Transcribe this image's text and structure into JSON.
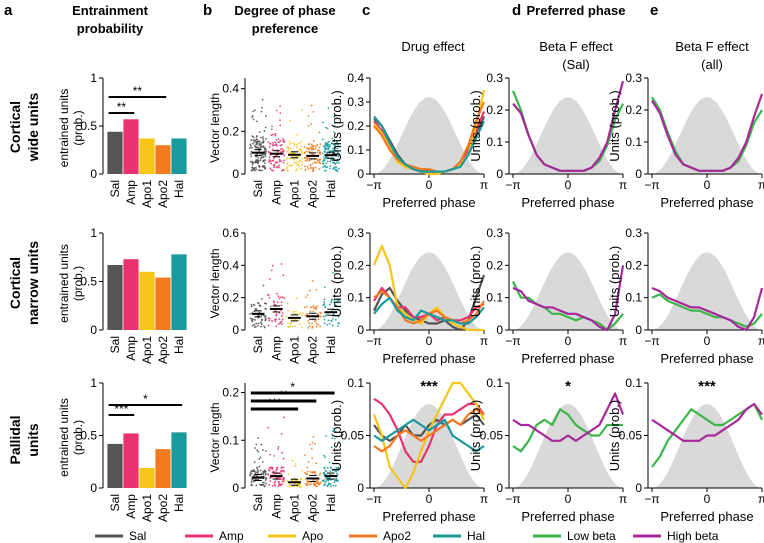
{
  "panels": {
    "a": {
      "letter": "a",
      "title": [
        "Entrainment",
        "probability"
      ]
    },
    "b": {
      "letter": "b",
      "title": [
        "Degree of phase",
        "preference"
      ]
    },
    "c": {
      "letter": "c",
      "title": [
        "Drug effect"
      ]
    },
    "d": {
      "letter": "d",
      "header": "Preferred phase",
      "title": [
        "Beta F effect",
        "(Sal)"
      ]
    },
    "e": {
      "letter": "e",
      "title": [
        "Beta F effect",
        "(all)"
      ]
    }
  },
  "rows": [
    {
      "label": [
        "Cortical",
        "wide units"
      ]
    },
    {
      "label": [
        "Cortical",
        "narrow units"
      ]
    },
    {
      "label": [
        "Pallidal",
        "units"
      ]
    }
  ],
  "colors": {
    "Sal": "#555555",
    "Amp": "#e8336e",
    "Apo1": "#f5c518",
    "Apo2": "#f47a20",
    "Hal": "#1a9a9c",
    "Low": "#3cb54a",
    "High": "#a8279b",
    "bg": "#d9d9d9"
  },
  "legend": [
    {
      "label": "Sal",
      "key": "Sal"
    },
    {
      "label": "Amp",
      "key": "Amp"
    },
    {
      "label": "Apo",
      "key": "Apo1"
    },
    {
      "label": "Apo2",
      "key": "Apo2"
    },
    {
      "label": "Hal",
      "key": "Hal"
    },
    {
      "label": "Low beta",
      "key": "Low"
    },
    {
      "label": "High beta",
      "key": "High"
    }
  ],
  "chart_data": [
    {
      "id": "a1",
      "type": "bar",
      "categories": [
        "Sal",
        "Amp",
        "Apo1",
        "Apo2",
        "Hal"
      ],
      "values": [
        0.44,
        0.57,
        0.37,
        0.3,
        0.37
      ],
      "ylim": [
        0,
        1
      ],
      "yticks": [
        0,
        0.5,
        1
      ],
      "ylabel": [
        "entrained units",
        "(prob.)"
      ],
      "sig": [
        {
          "from": 0,
          "to": 1,
          "label": "**"
        },
        {
          "from": 0,
          "to": 3,
          "label": "**"
        }
      ]
    },
    {
      "id": "a2",
      "type": "bar",
      "categories": [
        "Sal",
        "Amp",
        "Apo1",
        "Apo2",
        "Hal"
      ],
      "values": [
        0.67,
        0.73,
        0.6,
        0.54,
        0.78
      ],
      "ylim": [
        0,
        1
      ],
      "yticks": [
        0,
        0.5,
        1
      ],
      "ylabel": [
        "entrained units",
        "(prob.)"
      ],
      "sig": []
    },
    {
      "id": "a3",
      "type": "bar",
      "categories": [
        "Sal",
        "Amp",
        "Apo1",
        "Apo2",
        "Hal"
      ],
      "values": [
        0.42,
        0.52,
        0.19,
        0.37,
        0.53
      ],
      "ylim": [
        0,
        1
      ],
      "yticks": [
        0,
        0.5,
        1
      ],
      "ylabel": [
        "entrained units",
        "(prob.)"
      ],
      "sig": [
        {
          "from": 0,
          "to": 1,
          "label": "***"
        },
        {
          "from": 0,
          "to": 4,
          "label": "*"
        }
      ]
    },
    {
      "id": "b1",
      "type": "scatter",
      "categories": [
        "Sal",
        "Amp",
        "Apo1",
        "Apo2",
        "Hal"
      ],
      "means": [
        0.1,
        0.095,
        0.09,
        0.085,
        0.088
      ],
      "spread": [
        0.22,
        0.2,
        0.18,
        0.2,
        0.2
      ],
      "npts": [
        150,
        90,
        70,
        90,
        120
      ],
      "ylim": [
        0,
        0.45
      ],
      "yticks": [
        0,
        0.2,
        0.4
      ],
      "ylabel": [
        "Vector length"
      ],
      "sig": []
    },
    {
      "id": "b2",
      "type": "scatter",
      "categories": [
        "Sal",
        "Amp",
        "Apo1",
        "Apo2",
        "Hal"
      ],
      "means": [
        0.1,
        0.13,
        0.075,
        0.085,
        0.11
      ],
      "spread": [
        0.22,
        0.3,
        0.12,
        0.18,
        0.25
      ],
      "npts": [
        60,
        50,
        30,
        45,
        45
      ],
      "ylim": [
        0,
        0.6
      ],
      "yticks": [
        0,
        0.2,
        0.4,
        0.6
      ],
      "ylabel": [
        "Vector length"
      ],
      "sig": []
    },
    {
      "id": "b3",
      "type": "scatter",
      "categories": [
        "Sal",
        "Amp",
        "Apo1",
        "Apo2",
        "Hal"
      ],
      "means": [
        0.022,
        0.025,
        0.012,
        0.02,
        0.025
      ],
      "spread": [
        0.08,
        0.12,
        0.05,
        0.1,
        0.1
      ],
      "npts": [
        90,
        80,
        40,
        60,
        80
      ],
      "ylim": [
        0,
        0.22
      ],
      "yticks": [
        0,
        0.1,
        0.2
      ],
      "ylabel": [
        "Vector length"
      ],
      "sig": [
        {
          "from": 0,
          "to": 4,
          "label": "*"
        },
        {
          "from": 0,
          "to": 3,
          "label": "**"
        },
        {
          "from": 0,
          "to": 2,
          "label": "***"
        }
      ]
    },
    {
      "id": "c1",
      "type": "line",
      "xlabel": "Preferred phase",
      "xticklabels": [
        "−π",
        "0",
        "π"
      ],
      "ylim": [
        0,
        0.4
      ],
      "yticks": [
        0,
        0.1,
        0.2,
        0.3,
        0.4
      ],
      "ylabel": "Units (prob.)",
      "stars": "",
      "series": [
        {
          "key": "Sal",
          "values": [
            0.23,
            0.2,
            0.14,
            0.08,
            0.04,
            0.02,
            0.02,
            0.01,
            0.01,
            0.01,
            0.02,
            0.04,
            0.08,
            0.16,
            0.24
          ]
        },
        {
          "key": "Amp",
          "values": [
            0.22,
            0.18,
            0.12,
            0.06,
            0.03,
            0.02,
            0.01,
            0.01,
            0.01,
            0.01,
            0.02,
            0.05,
            0.1,
            0.18,
            0.26
          ]
        },
        {
          "key": "Apo1",
          "values": [
            0.21,
            0.17,
            0.11,
            0.05,
            0.03,
            0.02,
            0.01,
            0.0,
            0.0,
            0.01,
            0.02,
            0.04,
            0.08,
            0.2,
            0.35
          ]
        },
        {
          "key": "Apo2",
          "values": [
            0.2,
            0.16,
            0.1,
            0.06,
            0.04,
            0.03,
            0.02,
            0.02,
            0.01,
            0.01,
            0.02,
            0.05,
            0.12,
            0.22,
            0.3
          ]
        },
        {
          "key": "Hal",
          "values": [
            0.24,
            0.2,
            0.13,
            0.07,
            0.04,
            0.02,
            0.01,
            0.01,
            0.01,
            0.01,
            0.02,
            0.03,
            0.08,
            0.15,
            0.22
          ]
        }
      ]
    },
    {
      "id": "c2",
      "type": "line",
      "xlabel": "Preferred phase",
      "xticklabels": [
        "−π",
        "0",
        "π"
      ],
      "ylim": [
        0,
        0.3
      ],
      "yticks": [
        0,
        0.1,
        0.2,
        0.3
      ],
      "ylabel": "Units (prob.)",
      "stars": "",
      "series": [
        {
          "key": "Sal",
          "values": [
            0.06,
            0.11,
            0.13,
            0.09,
            0.06,
            0.04,
            0.03,
            0.02,
            0.02,
            0.03,
            0.01,
            0.0,
            0.03,
            0.1,
            0.17
          ]
        },
        {
          "key": "Amp",
          "values": [
            0.09,
            0.13,
            0.1,
            0.07,
            0.07,
            0.04,
            0.04,
            0.05,
            0.03,
            0.04,
            0.03,
            0.03,
            0.04,
            0.07,
            0.08
          ]
        },
        {
          "key": "Apo1",
          "values": [
            0.2,
            0.26,
            0.2,
            0.07,
            0.05,
            0.03,
            0.02,
            0.05,
            0.07,
            0.04,
            0.02,
            0.01,
            0.0,
            0.0,
            0.0
          ]
        },
        {
          "key": "Apo2",
          "values": [
            0.1,
            0.12,
            0.1,
            0.07,
            0.03,
            0.02,
            0.03,
            0.05,
            0.06,
            0.04,
            0.03,
            0.02,
            0.03,
            0.05,
            0.09
          ]
        },
        {
          "key": "Hal",
          "values": [
            0.05,
            0.08,
            0.1,
            0.06,
            0.04,
            0.03,
            0.06,
            0.05,
            0.04,
            0.03,
            0.03,
            0.02,
            0.02,
            0.04,
            0.07
          ]
        }
      ]
    },
    {
      "id": "c3",
      "type": "line",
      "xlabel": "Preferred phase",
      "xticklabels": [
        "−π",
        "0",
        "π"
      ],
      "ylim": [
        0,
        0.1
      ],
      "yticks": [
        0,
        0.05,
        0.1
      ],
      "ylabel": "Units (prob.)",
      "stars": "***",
      "series": [
        {
          "key": "Sal",
          "values": [
            0.06,
            0.05,
            0.045,
            0.05,
            0.06,
            0.05,
            0.05,
            0.06,
            0.065,
            0.06,
            0.065,
            0.06,
            0.065,
            0.07,
            0.06
          ]
        },
        {
          "key": "Amp",
          "values": [
            0.085,
            0.08,
            0.07,
            0.055,
            0.035,
            0.025,
            0.025,
            0.04,
            0.06,
            0.07,
            0.07,
            0.075,
            0.08,
            0.08,
            0.07
          ]
        },
        {
          "key": "Apo1",
          "values": [
            0.07,
            0.05,
            0.02,
            0.01,
            0.0,
            0.015,
            0.035,
            0.055,
            0.07,
            0.085,
            0.1,
            0.1,
            0.09,
            0.08,
            0.065
          ]
        },
        {
          "key": "Apo2",
          "values": [
            0.04,
            0.035,
            0.04,
            0.05,
            0.055,
            0.05,
            0.045,
            0.05,
            0.055,
            0.06,
            0.065,
            0.06,
            0.07,
            0.075,
            0.07
          ]
        },
        {
          "key": "Hal",
          "values": [
            0.05,
            0.045,
            0.05,
            0.055,
            0.06,
            0.065,
            0.06,
            0.055,
            0.06,
            0.065,
            0.05,
            0.045,
            0.04,
            0.035,
            0.04
          ]
        }
      ]
    },
    {
      "id": "d1",
      "type": "line",
      "xlabel": "Preferred phase",
      "xticklabels": [
        "−π",
        "0",
        "π"
      ],
      "ylim": [
        0,
        0.3
      ],
      "yticks": [
        0,
        0.1,
        0.2,
        0.3
      ],
      "ylabel": "Units (prob.)",
      "stars": "",
      "series": [
        {
          "key": "Low",
          "values": [
            0.26,
            0.2,
            0.12,
            0.06,
            0.03,
            0.02,
            0.01,
            0.01,
            0.01,
            0.01,
            0.02,
            0.04,
            0.09,
            0.17,
            0.22
          ]
        },
        {
          "key": "High",
          "values": [
            0.22,
            0.19,
            0.12,
            0.06,
            0.03,
            0.02,
            0.01,
            0.01,
            0.01,
            0.01,
            0.02,
            0.05,
            0.1,
            0.2,
            0.29
          ]
        }
      ]
    },
    {
      "id": "d2",
      "type": "line",
      "xlabel": "Preferred phase",
      "xticklabels": [
        "−π",
        "0",
        "π"
      ],
      "ylim": [
        0,
        0.3
      ],
      "yticks": [
        0,
        0.1,
        0.2,
        0.3
      ],
      "ylabel": "Units (prob.)",
      "stars": "",
      "series": [
        {
          "key": "Low",
          "values": [
            0.15,
            0.1,
            0.1,
            0.08,
            0.07,
            0.05,
            0.05,
            0.04,
            0.03,
            0.04,
            0.03,
            0.02,
            0.0,
            0.02,
            0.05
          ]
        },
        {
          "key": "High",
          "values": [
            0.13,
            0.12,
            0.09,
            0.08,
            0.07,
            0.07,
            0.06,
            0.05,
            0.05,
            0.04,
            0.03,
            0.01,
            0.0,
            0.05,
            0.2
          ]
        }
      ]
    },
    {
      "id": "d3",
      "type": "line",
      "xlabel": "Preferred phase",
      "xticklabels": [
        "−π",
        "0",
        "π"
      ],
      "ylim": [
        0,
        0.1
      ],
      "yticks": [
        0,
        0.05,
        0.1
      ],
      "ylabel": "Units (prob.)",
      "stars": "*",
      "series": [
        {
          "key": "Low",
          "values": [
            0.04,
            0.035,
            0.045,
            0.06,
            0.065,
            0.06,
            0.075,
            0.07,
            0.06,
            0.055,
            0.05,
            0.05,
            0.06,
            0.06,
            0.06
          ]
        },
        {
          "key": "High",
          "values": [
            0.065,
            0.06,
            0.06,
            0.055,
            0.05,
            0.045,
            0.045,
            0.05,
            0.045,
            0.05,
            0.055,
            0.06,
            0.075,
            0.09,
            0.07
          ]
        }
      ]
    },
    {
      "id": "e1",
      "type": "line",
      "xlabel": "Preferred phase",
      "xticklabels": [
        "−π",
        "0",
        "π"
      ],
      "ylim": [
        0,
        0.3
      ],
      "yticks": [
        0,
        0.1,
        0.2,
        0.3
      ],
      "ylabel": "Units (prob.)",
      "stars": "",
      "series": [
        {
          "key": "Low",
          "values": [
            0.24,
            0.2,
            0.13,
            0.07,
            0.03,
            0.02,
            0.01,
            0.01,
            0.01,
            0.01,
            0.02,
            0.04,
            0.09,
            0.16,
            0.2
          ]
        },
        {
          "key": "High",
          "values": [
            0.23,
            0.19,
            0.12,
            0.06,
            0.03,
            0.02,
            0.01,
            0.01,
            0.01,
            0.01,
            0.02,
            0.05,
            0.1,
            0.18,
            0.25
          ]
        }
      ]
    },
    {
      "id": "e2",
      "type": "line",
      "xlabel": "Preferred phase",
      "xticklabels": [
        "−π",
        "0",
        "π"
      ],
      "ylim": [
        0,
        0.3
      ],
      "yticks": [
        0,
        0.1,
        0.2,
        0.3
      ],
      "ylabel": "Units (prob.)",
      "stars": "",
      "series": [
        {
          "key": "Low",
          "values": [
            0.1,
            0.11,
            0.09,
            0.08,
            0.07,
            0.06,
            0.06,
            0.05,
            0.04,
            0.04,
            0.03,
            0.02,
            0.01,
            0.02,
            0.05
          ]
        },
        {
          "key": "High",
          "values": [
            0.13,
            0.12,
            0.1,
            0.09,
            0.08,
            0.07,
            0.07,
            0.06,
            0.05,
            0.04,
            0.03,
            0.01,
            0.0,
            0.04,
            0.13
          ]
        }
      ]
    },
    {
      "id": "e3",
      "type": "line",
      "xlabel": "Preferred phase",
      "xticklabels": [
        "−π",
        "0",
        "π"
      ],
      "ylim": [
        0,
        0.1
      ],
      "yticks": [
        0,
        0.05,
        0.1
      ],
      "ylabel": "Units (prob.)",
      "stars": "***",
      "series": [
        {
          "key": "Low",
          "values": [
            0.02,
            0.03,
            0.045,
            0.055,
            0.065,
            0.075,
            0.07,
            0.065,
            0.06,
            0.06,
            0.065,
            0.07,
            0.075,
            0.08,
            0.065
          ]
        },
        {
          "key": "High",
          "values": [
            0.065,
            0.06,
            0.055,
            0.05,
            0.045,
            0.045,
            0.045,
            0.05,
            0.05,
            0.055,
            0.06,
            0.065,
            0.075,
            0.08,
            0.07
          ]
        }
      ]
    }
  ]
}
